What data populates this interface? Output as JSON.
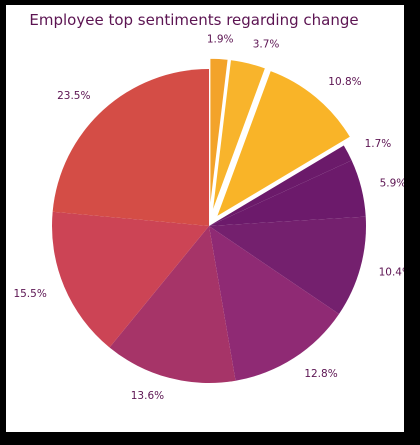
{
  "chart_data": {
    "type": "pie",
    "title": "Employee top sentiments regarding change",
    "slices": [
      {
        "label": "1.9%",
        "value": 1.9,
        "color": "#f3a32a",
        "exploded": true
      },
      {
        "label": "3.7%",
        "value": 3.7,
        "color": "#f8b42c",
        "exploded": true
      },
      {
        "label": "10.8%",
        "value": 10.8,
        "color": "#f9b428",
        "exploded": true
      },
      {
        "label": "1.7%",
        "value": 1.7,
        "color": "#6b1a6a",
        "exploded": false
      },
      {
        "label": "5.9%",
        "value": 5.9,
        "color": "#6c1a6b",
        "exploded": false
      },
      {
        "label": "10.4%",
        "value": 10.4,
        "color": "#74206e",
        "exploded": false
      },
      {
        "label": "12.8%",
        "value": 12.8,
        "color": "#8f2a74",
        "exploded": false
      },
      {
        "label": "13.6%",
        "value": 13.6,
        "color": "#a63468",
        "exploded": false
      },
      {
        "label": "15.5%",
        "value": 15.5,
        "color": "#cc4455",
        "exploded": false
      },
      {
        "label": "23.5%",
        "value": 23.5,
        "color": "#d44d46",
        "exploded": false
      }
    ],
    "start_angle": 90,
    "direction": "clockwise",
    "legend": "none"
  }
}
